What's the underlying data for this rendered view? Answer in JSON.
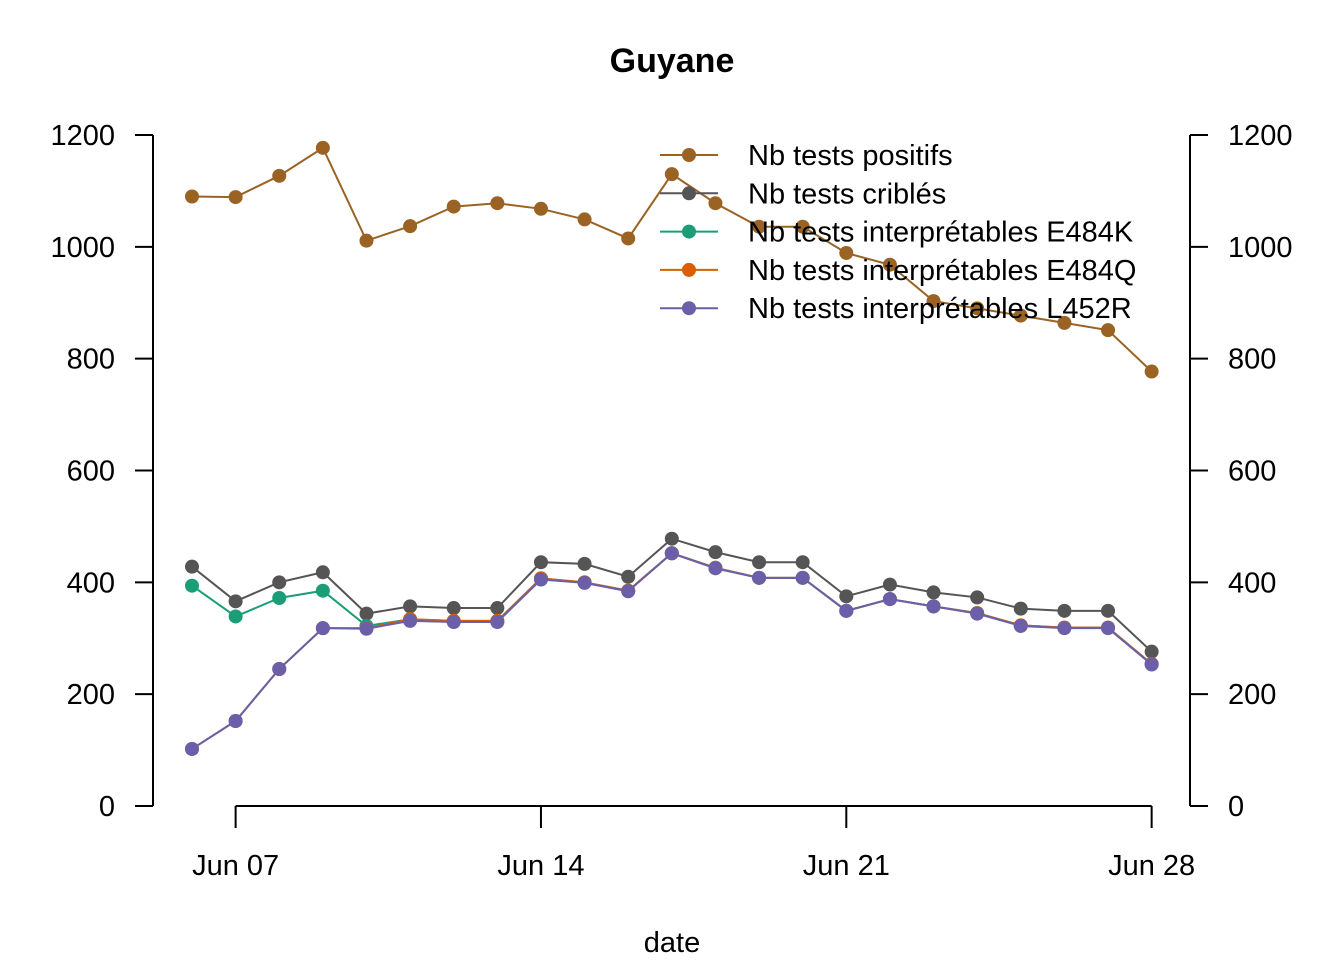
{
  "chart_data": {
    "type": "line",
    "title": "Guyane",
    "xlabel": "date",
    "ylabel": "",
    "ylim": [
      0,
      1200
    ],
    "y_ticks": [
      0,
      200,
      400,
      600,
      800,
      1000,
      1200
    ],
    "secondary_y_axis": true,
    "x_ticks": [
      {
        "date": "2021-06-07",
        "label": "Jun 07"
      },
      {
        "date": "2021-06-14",
        "label": "Jun 14"
      },
      {
        "date": "2021-06-21",
        "label": "Jun 21"
      },
      {
        "date": "2021-06-28",
        "label": "Jun 28"
      }
    ],
    "x": [
      "2021-06-06",
      "2021-06-07",
      "2021-06-08",
      "2021-06-09",
      "2021-06-10",
      "2021-06-11",
      "2021-06-12",
      "2021-06-13",
      "2021-06-14",
      "2021-06-15",
      "2021-06-16",
      "2021-06-17",
      "2021-06-18",
      "2021-06-19",
      "2021-06-20",
      "2021-06-21",
      "2021-06-22",
      "2021-06-23",
      "2021-06-24",
      "2021-06-25",
      "2021-06-26",
      "2021-06-27",
      "2021-06-28"
    ],
    "grid": false,
    "legend_position": "top-right",
    "series": [
      {
        "name": "Nb tests positifs",
        "color": "#9a6324",
        "values": [
          1090,
          1089,
          1127,
          1177,
          1011,
          1037,
          1072,
          1078,
          1068,
          1049,
          1015,
          1130,
          1078,
          1036,
          1036,
          989,
          968,
          903,
          890,
          877,
          864,
          851,
          777
        ]
      },
      {
        "name": "Nb tests criblés",
        "color": "#555555",
        "values": [
          428,
          366,
          400,
          418,
          344,
          357,
          354,
          354,
          436,
          433,
          410,
          478,
          454,
          436,
          436,
          375,
          396,
          382,
          373,
          353,
          349,
          349,
          276
        ]
      },
      {
        "name": "Nb tests interprétables E484K",
        "color": "#1b9e77",
        "values": [
          394,
          339,
          372,
          385,
          322,
          334,
          331,
          331,
          407,
          400,
          385,
          452,
          426,
          408,
          408,
          349,
          370,
          357,
          345,
          323,
          319,
          319,
          254
        ]
      },
      {
        "name": "Nb tests interprétables E484Q",
        "color": "#d95f02",
        "values": [
          102,
          152,
          245,
          318,
          318,
          334,
          331,
          331,
          407,
          400,
          385,
          452,
          426,
          408,
          408,
          349,
          370,
          357,
          345,
          323,
          319,
          319,
          254
        ]
      },
      {
        "name": "Nb tests interprétables L452R",
        "color": "#6a5fa8",
        "values": [
          102,
          152,
          245,
          318,
          317,
          331,
          329,
          329,
          405,
          399,
          384,
          452,
          425,
          408,
          408,
          349,
          370,
          357,
          344,
          322,
          318,
          318,
          253
        ]
      }
    ]
  }
}
